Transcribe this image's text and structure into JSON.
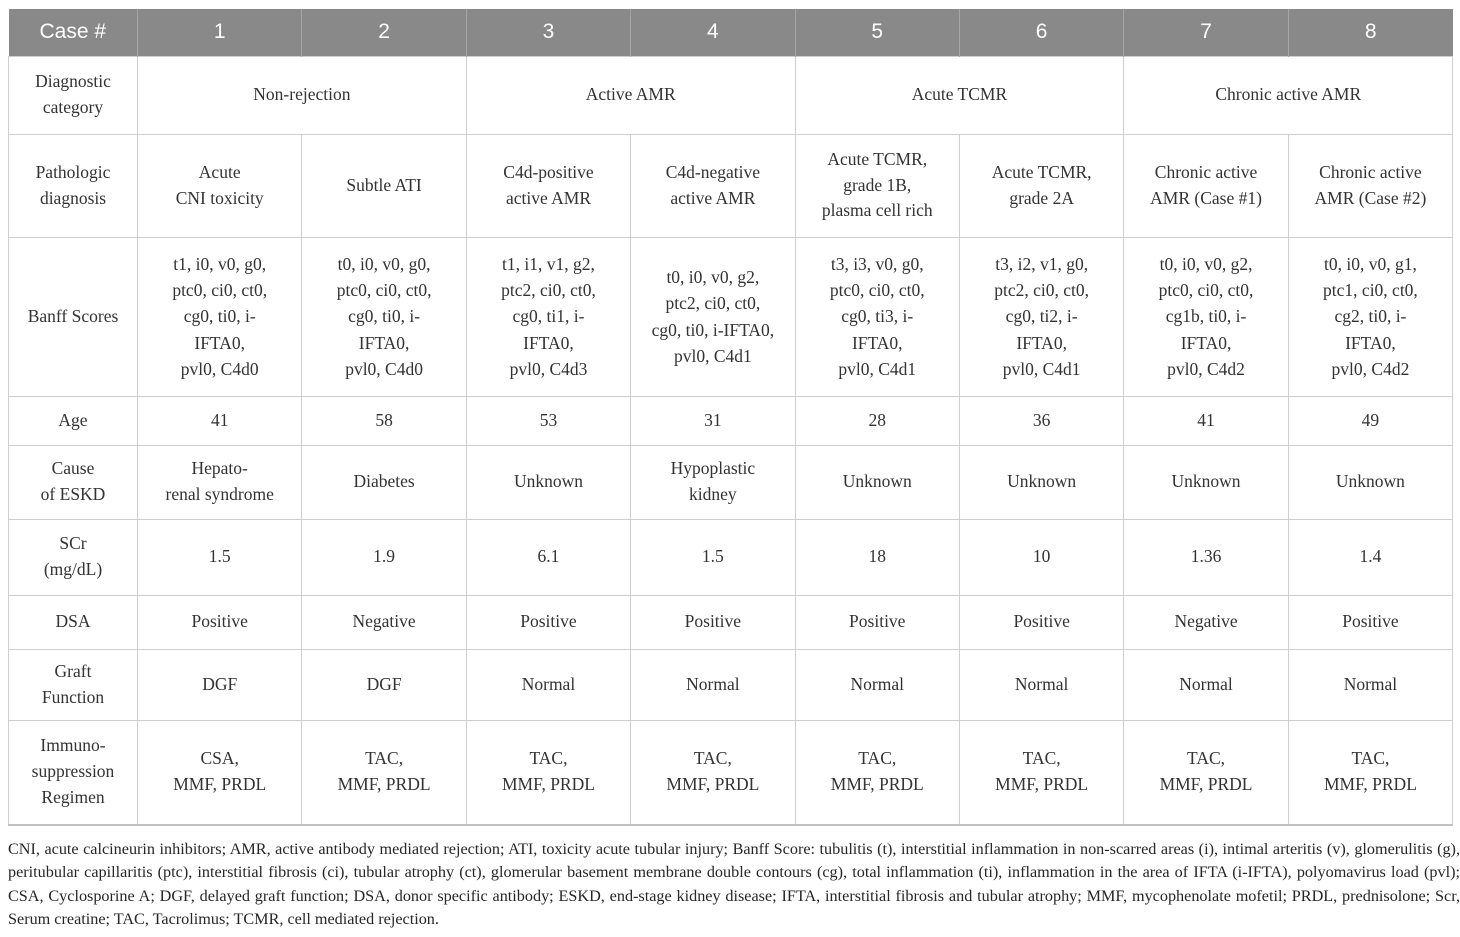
{
  "header": {
    "label": "Case #",
    "cases": [
      "1",
      "2",
      "3",
      "4",
      "5",
      "6",
      "7",
      "8"
    ]
  },
  "row_labels": {
    "diagnostic_category": "Diagnostic\ncategory",
    "pathologic_diagnosis": "Pathologic\ndiagnosis",
    "banff": "Banff Scores",
    "age": "Age",
    "cause": "Cause\nof ESKD",
    "scr": "SCr\n(mg/dL)",
    "dsa": "DSA",
    "graft": "Graft\nFunction",
    "immuno": "Immuno-\nsuppression\nRegimen"
  },
  "diagnostic_category": [
    {
      "label": "Non-rejection",
      "span": 2
    },
    {
      "label": "Active AMR",
      "span": 2
    },
    {
      "label": "Acute TCMR",
      "span": 2
    },
    {
      "label": "Chronic active AMR",
      "span": 2
    }
  ],
  "pathologic_diagnosis": [
    "Acute\nCNI toxicity",
    "Subtle ATI",
    "C4d-positive\nactive AMR",
    "C4d-negative\nactive AMR",
    "Acute TCMR,\ngrade 1B,\nplasma cell rich",
    "Acute TCMR,\ngrade 2A",
    "Chronic active\nAMR (Case #1)",
    "Chronic active\nAMR (Case #2)"
  ],
  "banff": [
    "t1, i0, v0, g0,\nptc0, ci0, ct0,\ncg0, ti0, i-\nIFTA0,\npvl0, C4d0",
    "t0, i0, v0, g0,\nptc0, ci0, ct0,\ncg0, ti0, i-\nIFTA0,\npvl0, C4d0",
    "t1, i1, v1, g2,\nptc2, ci0, ct0,\ncg0, ti1, i-\nIFTA0,\npvl0, C4d3",
    "t0, i0, v0, g2,\nptc2, ci0, ct0,\ncg0, ti0, i-IFTA0,\npvl0, C4d1",
    "t3, i3, v0, g0,\nptc0, ci0, ct0,\ncg0, ti3, i-\nIFTA0,\npvl0, C4d1",
    "t3, i2, v1, g0,\nptc2, ci0, ct0,\ncg0, ti2, i-\nIFTA0,\npvl0, C4d1",
    "t0, i0, v0, g2,\nptc0, ci0, ct0,\ncg1b, ti0, i-\nIFTA0,\npvl0, C4d2",
    "t0, i0, v0, g1,\nptc1, ci0, ct0,\ncg2, ti0, i-\nIFTA0,\npvl0, C4d2"
  ],
  "age": [
    "41",
    "58",
    "53",
    "31",
    "28",
    "36",
    "41",
    "49"
  ],
  "cause": [
    "Hepato-\nrenal syndrome",
    "Diabetes",
    "Unknown",
    "Hypoplastic\nkidney",
    "Unknown",
    "Unknown",
    "Unknown",
    "Unknown"
  ],
  "scr": [
    "1.5",
    "1.9",
    "6.1",
    "1.5",
    "18",
    "10",
    "1.36",
    "1.4"
  ],
  "dsa": [
    "Positive",
    "Negative",
    "Positive",
    "Positive",
    "Positive",
    "Positive",
    "Negative",
    "Positive"
  ],
  "graft": [
    "DGF",
    "DGF",
    "Normal",
    "Normal",
    "Normal",
    "Normal",
    "Normal",
    "Normal"
  ],
  "immuno": [
    "CSA,\nMMF, PRDL",
    "TAC,\nMMF, PRDL",
    "TAC,\nMMF, PRDL",
    "TAC,\nMMF, PRDL",
    "TAC,\nMMF, PRDL",
    "TAC,\nMMF, PRDL",
    "TAC,\nMMF, PRDL",
    "TAC,\nMMF, PRDL"
  ],
  "footnote": "CNI, acute calcineurin inhibitors; AMR, active antibody mediated rejection; ATI, toxicity acute tubular injury; Banff Score: tubulitis (t), interstitial inflammation in non-scarred areas (i), intimal arteritis (v), glomerulitis (g), peritubular capillaritis (ptc), interstitial fibrosis (ci), tubular atrophy (ct), glomerular basement membrane double contours (cg), total inflammation (ti), inflammation in the area of IFTA (i-IFTA), polyomavirus load (pvl); CSA, Cyclosporine A; DGF, delayed graft function; DSA, donor specific antibody; ESKD, end-stage kidney disease; IFTA, interstitial fibrosis and tubular atrophy; MMF, mycophenolate mofetil; PRDL, prednisolone; Scr, Serum creatine; TAC, Tacrolimus; TCMR, cell mediated rejection.",
  "colors": {
    "header_bg": "#898989",
    "header_text": "#ffffff",
    "border": "#cfcfcf",
    "text": "#333333"
  }
}
